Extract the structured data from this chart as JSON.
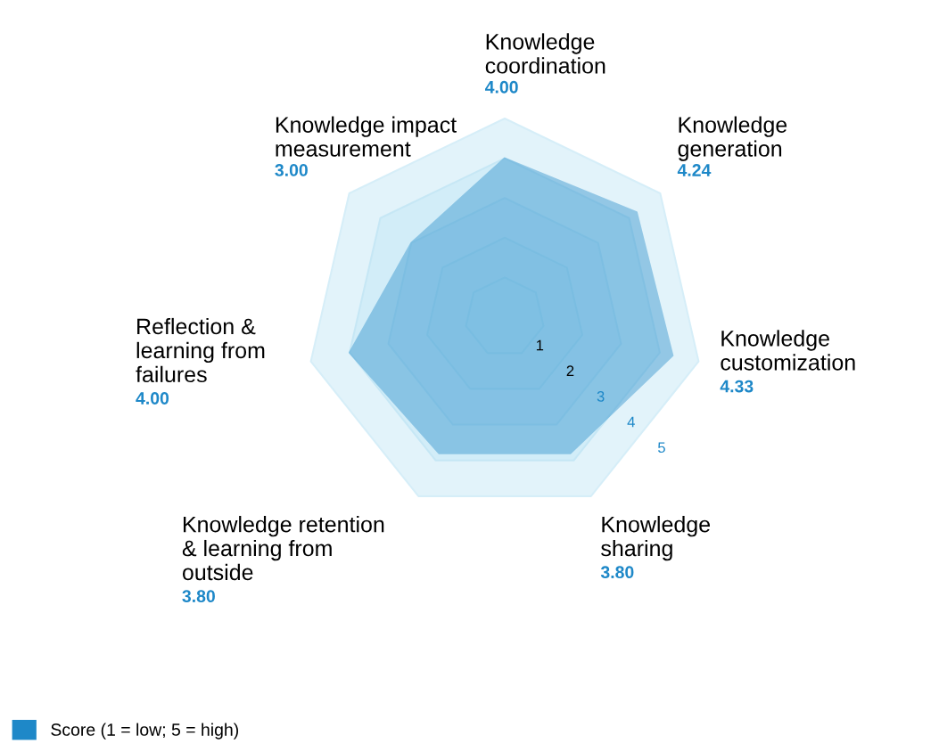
{
  "chart_data": {
    "type": "radar",
    "categories": [
      "Knowledge\ncoordination",
      "Knowledge\ngeneration",
      "Knowledge\ncustomization",
      "Knowledge\nsharing",
      "Knowledge retention\n& learning from\noutside",
      "Reflection &\nlearning from\nfailures",
      "Knowledge impact\nmeasurement"
    ],
    "series": [
      {
        "name": "Score (1 = low; 5 = high)",
        "color": "#1e88c8",
        "values": [
          4.0,
          4.24,
          4.33,
          3.8,
          3.8,
          4.0,
          3.0
        ]
      }
    ],
    "annotations": [
      "4.00",
      "4.24",
      "4.33",
      "3.80",
      "3.80",
      "4.00",
      "3.00"
    ],
    "ylim": [
      0,
      5
    ],
    "yticks": [
      1,
      2,
      3,
      4,
      5
    ],
    "grid": true,
    "legend": "bottom left"
  }
}
